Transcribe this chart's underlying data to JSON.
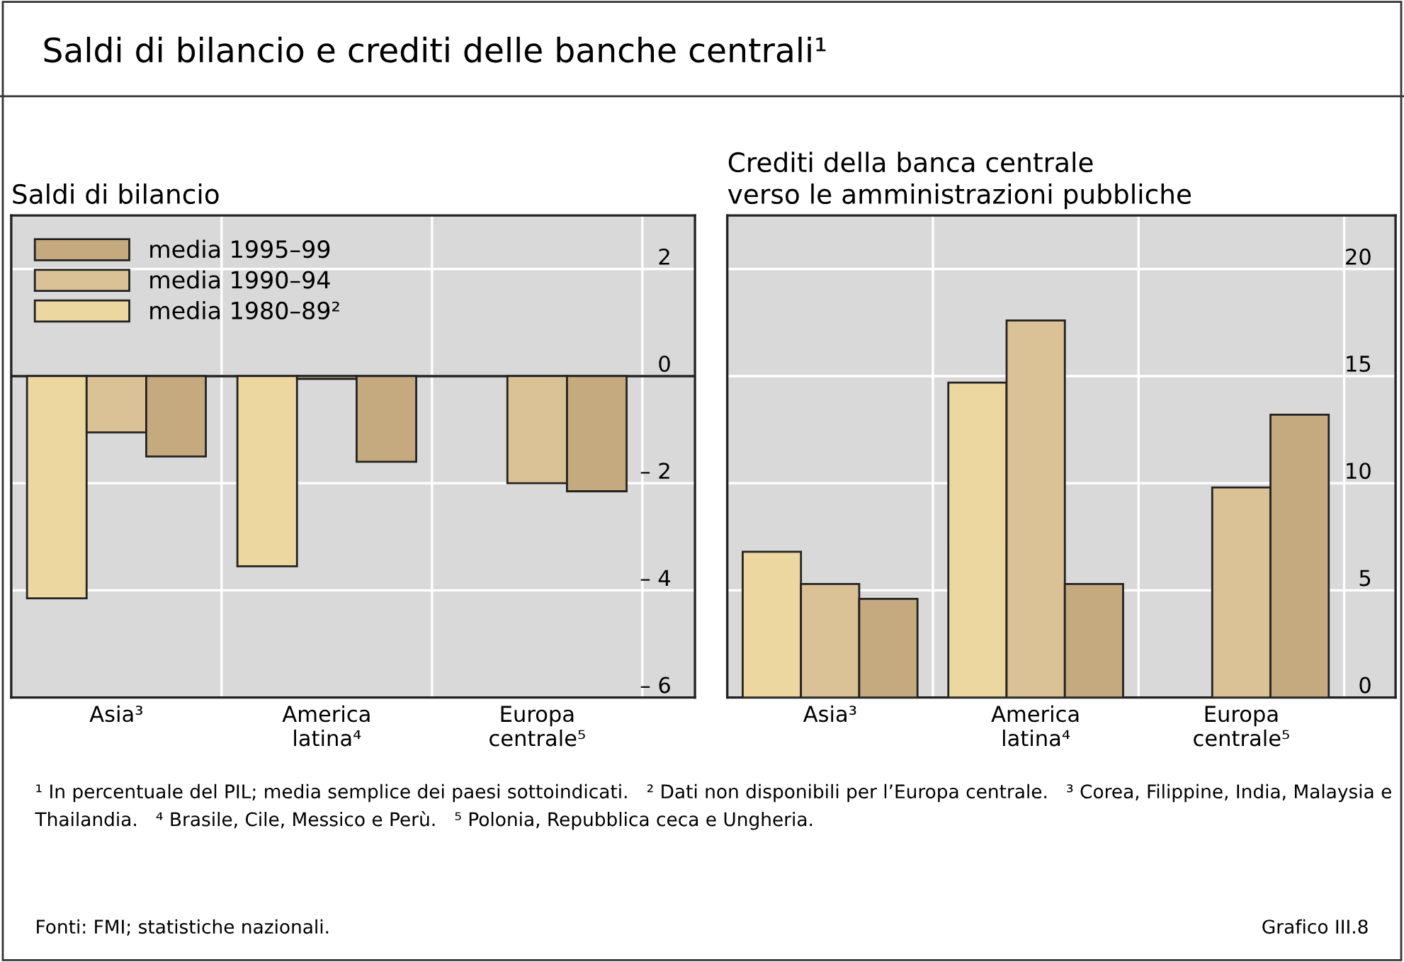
{
  "chart_data": [
    {
      "type": "bar",
      "title": "Saldi di bilancio e crediti delle banche centrali¹",
      "subtitle": "Saldi di bilancio",
      "categories": [
        "Asia³",
        "America\nlatina⁴",
        "Europa\ncentrale⁵"
      ],
      "series": [
        {
          "name": "media 1980–89²",
          "color": "#ecd7a0",
          "values": [
            -4.15,
            -3.55,
            null
          ]
        },
        {
          "name": "media 1990–94",
          "color": "#dbc296",
          "values": [
            -1.05,
            -0.05,
            -2.0
          ]
        },
        {
          "name": "media 1995–99",
          "color": "#c5a97f",
          "values": [
            -1.5,
            -1.6,
            -2.15
          ]
        }
      ],
      "ylim": [
        -6,
        3
      ],
      "yticks": [
        2,
        0,
        {
          "value": -2,
          "label": "– 2"
        },
        {
          "value": -4,
          "label": "– 4"
        },
        {
          "value": -6,
          "label": "– 6"
        }
      ],
      "grid": true,
      "legend": "top left",
      "annotations": [
        "¹ In percentuale del PIL; media semplice dei paesi sottoindicati.   ² Dati non disponibili per l’Europa centrale.   ³ Corea, Filippine, India, Malaysia e Thailandia.   ⁴ Brasile, Cile, Messico e Perù.   ⁵ Polonia, Repubblica ceca e Ungheria.",
        "Fonti: FMI; statistiche nazionali.",
        "Grafico III.8"
      ]
    },
    {
      "type": "bar",
      "title": "Crediti della banca centrale\nverso le amministrazioni pubbliche",
      "categories": [
        "Asia³",
        "America\nlatina⁴",
        "Europa\ncentrale⁵"
      ],
      "series": [
        {
          "color": "#ecd7a0",
          "values": [
            6.8,
            14.7,
            null
          ]
        },
        {
          "color": "#dbc296",
          "values": [
            5.3,
            17.6,
            9.8
          ]
        },
        {
          "color": "#c5a97f",
          "values": [
            4.6,
            5.3,
            13.2
          ]
        }
      ],
      "ylim": [
        0,
        22.5
      ],
      "yticks": [
        0,
        5,
        10,
        15,
        20
      ],
      "grid": true
    }
  ]
}
